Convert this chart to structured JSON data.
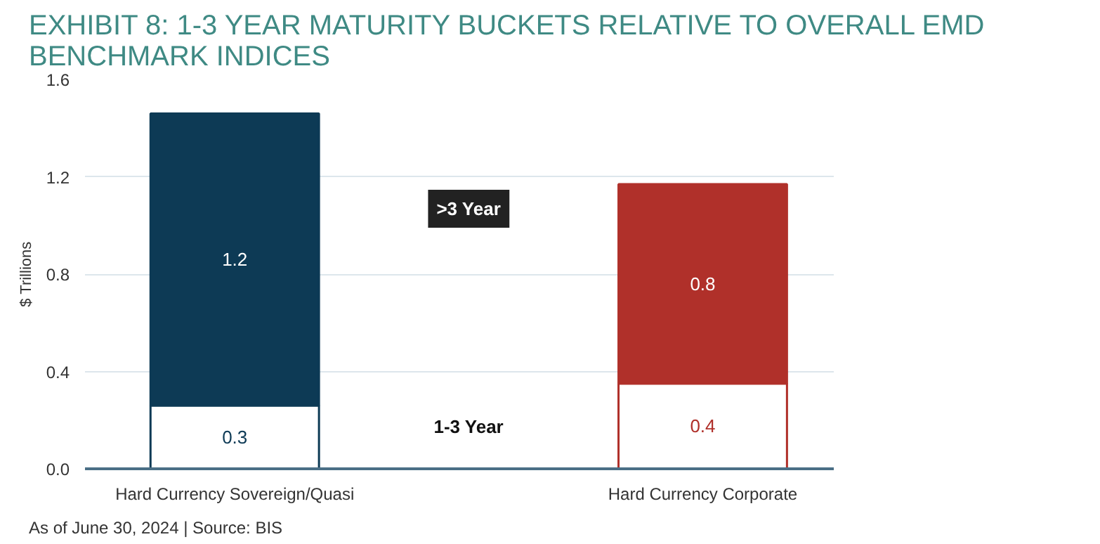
{
  "chart_data": {
    "type": "bar",
    "stacked": true,
    "title": "EXHIBIT 8: 1-3 YEAR MATURITY BUCKETS RELATIVE TO OVERALL EMD BENCHMARK INDICES",
    "ylabel": "$ Trillions",
    "categories": [
      "Hard Currency Sovereign/Quasi",
      "Hard Currency Corporate"
    ],
    "series": [
      {
        "colors": [
          "#ffffff",
          "#ffffff"
        ],
        "values": [
          0.26,
          0.35
        ],
        "value_labels": [
          "0.3",
          "0.4"
        ]
      },
      {
        "colors": [
          "#0d3a55",
          "#b0302a"
        ],
        "values": [
          1.2,
          0.82
        ],
        "value_labels": [
          "1.2",
          "0.8"
        ]
      }
    ],
    "ylim": [
      0,
      1.6
    ],
    "yticks": [
      "0.0",
      0.4,
      0.8,
      1.2,
      1.6
    ],
    "grid": "y",
    "annotations": [
      ">3 Year",
      "1-3 Year",
      "As of June 30, 2024 | Source: BIS"
    ]
  }
}
